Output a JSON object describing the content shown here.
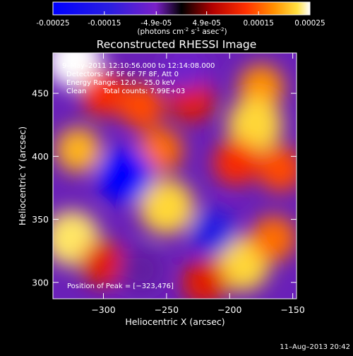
{
  "colorbar": {
    "tick_labels": [
      "-0.00025",
      "-0.00015",
      "-4.9e-05",
      "4.9e-05",
      "0.00015",
      "0.00025"
    ],
    "tick_values": [
      -0.00025,
      -0.00015,
      -4.9e-05,
      4.9e-05,
      0.00015,
      0.00025
    ],
    "range": [
      -0.00025,
      0.00025
    ],
    "units_main": "(photons cm",
    "units_exp1": "-2",
    "units_s": " s",
    "units_exp2": "-1",
    "units_asec": " asec",
    "units_exp3": "-2",
    "units_close": ")"
  },
  "chart_data": {
    "type": "heatmap",
    "title": "Reconstructed RHESSI Image",
    "xlabel": "Heliocentric X (arcsec)",
    "ylabel": "Heliocentric Y (arcsec)",
    "xlim": [
      -340,
      -147
    ],
    "ylim": [
      287,
      482
    ],
    "x_ticks": [
      -300,
      -250,
      -200,
      -150
    ],
    "x_tick_labels": [
      "−300",
      "−250",
      "−200",
      "−150"
    ],
    "y_ticks": [
      300,
      350,
      400,
      450
    ],
    "y_tick_labels": [
      "300",
      "350",
      "400",
      "450"
    ],
    "annotations": {
      "time": "9–May–2011 12:10:56.000 to 12:14:08.000",
      "detectors": "Detectors: 4F 5F 6F 7F 8F, Att 0",
      "energy": "Energy Range: 12.0 – 25.0 keV",
      "clean": "Clean",
      "counts": "Total counts: 7.99E+03",
      "peak": "Position of Peak = [−323,476]"
    },
    "features": [
      {
        "x": -323,
        "y": 476,
        "value": 0.00025
      },
      {
        "x": -300,
        "y": 450,
        "value": 0.00012
      },
      {
        "x": -270,
        "y": 440,
        "value": 0.00014
      },
      {
        "x": -230,
        "y": 445,
        "value": 0.0001
      },
      {
        "x": -175,
        "y": 455,
        "value": 0.00018
      },
      {
        "x": -180,
        "y": 425,
        "value": 0.00022
      },
      {
        "x": -320,
        "y": 405,
        "value": 0.0002
      },
      {
        "x": -255,
        "y": 405,
        "value": 0.00016
      },
      {
        "x": -250,
        "y": 360,
        "value": 0.00022
      },
      {
        "x": -195,
        "y": 395,
        "value": 0.00012
      },
      {
        "x": -160,
        "y": 390,
        "value": 0.00014
      },
      {
        "x": -325,
        "y": 335,
        "value": 0.00023
      },
      {
        "x": -300,
        "y": 315,
        "value": 0.0001
      },
      {
        "x": -190,
        "y": 315,
        "value": 0.00022
      },
      {
        "x": -165,
        "y": 335,
        "value": 0.00016
      },
      {
        "x": -220,
        "y": 300,
        "value": 0.0001
      },
      {
        "x": -283,
        "y": 385,
        "value": -0.00025
      },
      {
        "x": -213,
        "y": 340,
        "value": -0.00015
      },
      {
        "x": -235,
        "y": 470,
        "value": -6e-05
      },
      {
        "x": -270,
        "y": 310,
        "value": -4e-05
      }
    ]
  },
  "footer": {
    "date": "11–Aug–2013 20:42"
  }
}
